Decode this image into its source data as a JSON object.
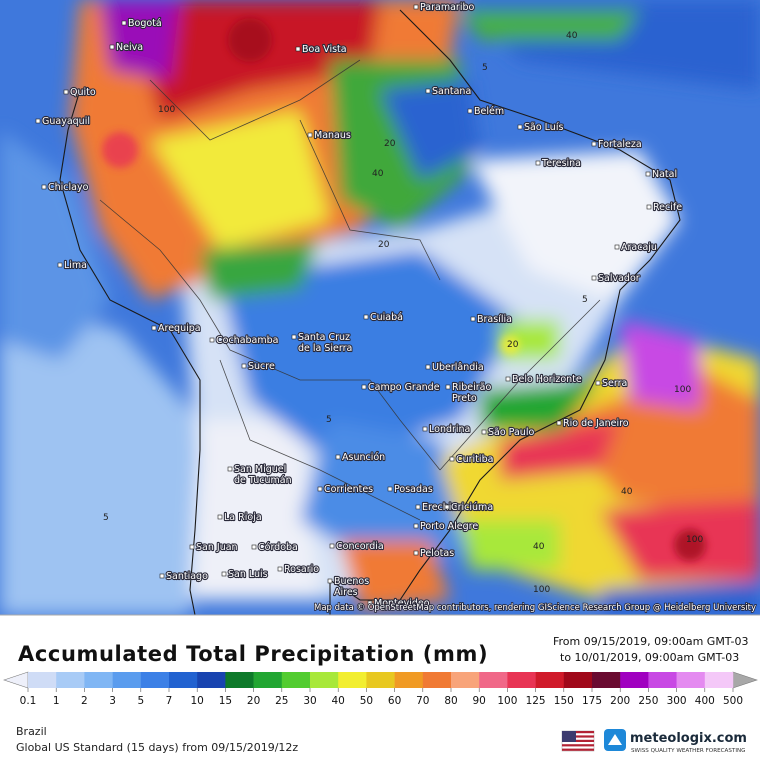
{
  "title": "Accumulated Total Precipitation (mm)",
  "period": {
    "from": "From 09/15/2019, 09:00am GMT-03",
    "to": "to 10/01/2019, 09:00am GMT-03"
  },
  "attribution": "Map data © OpenStreetMap contributors, rendering GIScience Research Group @ Heidelberg University",
  "region": "Brazil",
  "model": "Global US Standard (15 days) from 09/15/2019/12z",
  "brand": {
    "name": "meteologix.com",
    "tagline": "SWISS QUALITY WEATHER FORECASTING"
  },
  "legend": {
    "labels": [
      "0.1",
      "1",
      "2",
      "3",
      "5",
      "7",
      "10",
      "15",
      "20",
      "25",
      "30",
      "40",
      "50",
      "60",
      "70",
      "80",
      "90",
      "100",
      "125",
      "150",
      "175",
      "200",
      "250",
      "300",
      "400",
      "500"
    ],
    "low_color": "#eef0fa",
    "high_color": "#a8a8a8",
    "colors": [
      "#cfdcf6",
      "#a8cbf6",
      "#80b6f4",
      "#5a9cee",
      "#3c80e6",
      "#2262d0",
      "#1844b0",
      "#0e7a2a",
      "#22a632",
      "#52cc30",
      "#a8e83a",
      "#f2ee30",
      "#e8c820",
      "#f09a24",
      "#f07a34",
      "#f8a47a",
      "#f06888",
      "#e83454",
      "#d01a2a",
      "#a0081a",
      "#6a0a30",
      "#a000c0",
      "#c848e4",
      "#e48af0",
      "#f4c8f8"
    ]
  },
  "cities": [
    [
      "Paramaribo"
    ],
    [
      "Bogotá"
    ],
    [
      "Neiva"
    ],
    [
      "Boa Vista"
    ],
    [
      "Quito"
    ],
    [
      "Santana"
    ],
    [
      "Belém"
    ],
    [
      "Guayaquil"
    ],
    [
      "São Luís"
    ],
    [
      "Manaus"
    ],
    [
      "Fortaleza"
    ],
    [
      "Teresina"
    ],
    [
      "Chiclayo"
    ],
    [
      "Natal"
    ],
    [
      "Recife"
    ],
    [
      "Aracaju"
    ],
    [
      "Lima"
    ],
    [
      "Salvador"
    ],
    [
      "Arequipa"
    ],
    [
      "Cuiabá"
    ],
    [
      "Brasília"
    ],
    [
      "Cochabamba"
    ],
    [
      "Santa Cruz",
      "de la Sierra"
    ],
    [
      "Sucre"
    ],
    [
      "Uberlândia"
    ],
    [
      "Belo Horizonte"
    ],
    [
      "Serra"
    ],
    [
      "Campo Grande"
    ],
    [
      "Ribeirão",
      "Preto"
    ],
    [
      "Londrina"
    ],
    [
      "São Paulo"
    ],
    [
      "Rio de Janeiro"
    ],
    [
      "Asunción"
    ],
    [
      "San Miguel",
      "de Tucumán"
    ],
    [
      "Curitiba"
    ],
    [
      "Corrientes"
    ],
    [
      "Posadas"
    ],
    [
      "Erechim"
    ],
    [
      "Criciúma"
    ],
    [
      "La Rioja"
    ],
    [
      "Porto Alegre"
    ],
    [
      "San Juan"
    ],
    [
      "Córdoba"
    ],
    [
      "Concordia"
    ],
    [
      "Pelotas"
    ],
    [
      "Rosario"
    ],
    [
      "Santiago"
    ],
    [
      "San Luis"
    ],
    [
      "Buenos",
      "Aires"
    ],
    [
      "Montevideo"
    ]
  ],
  "contour_labels": [
    "40",
    "5",
    "100",
    "20",
    "40",
    "5",
    "40",
    "100",
    "40",
    "100",
    "20",
    "5",
    "20",
    "5",
    "100"
  ]
}
